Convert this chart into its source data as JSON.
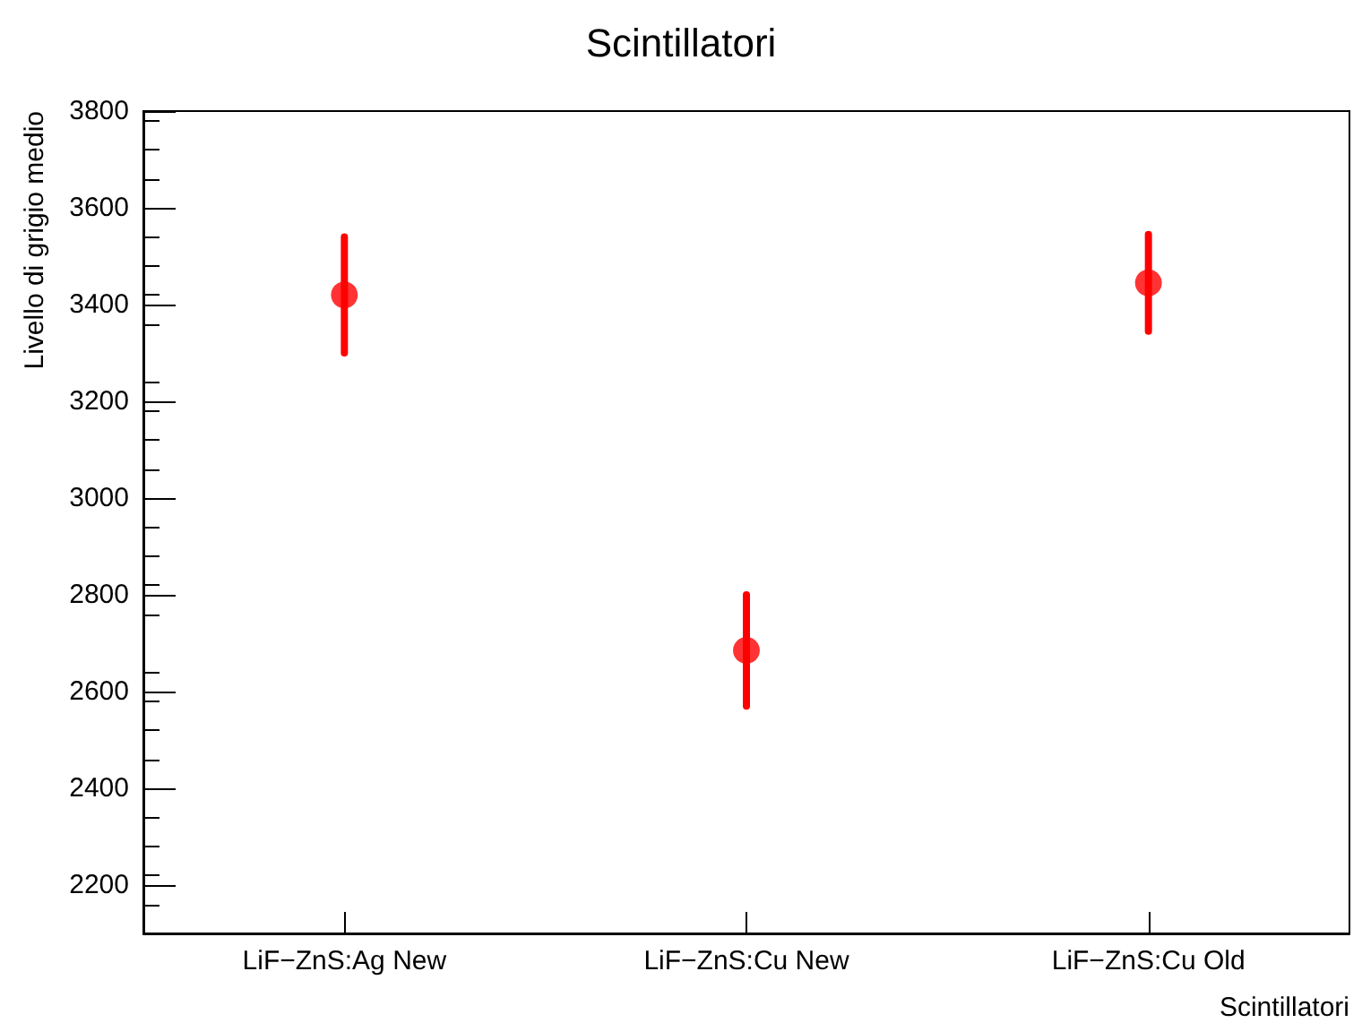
{
  "chart_data": {
    "type": "scatter",
    "title": "Scintillatori",
    "xlabel": "Scintillatori",
    "ylabel": "Livello di grigio medio",
    "categories": [
      "LiF−ZnS:Ag New",
      "LiF−ZnS:Cu New",
      "LiF−ZnS:Cu Old"
    ],
    "series": [
      {
        "color": "#ff0000",
        "values": [
          3420,
          2685,
          3445
        ],
        "errors": [
          120,
          115,
          100
        ]
      }
    ],
    "ylim": [
      2100,
      3800
    ],
    "yticks": [
      2200,
      2400,
      2600,
      2800,
      3000,
      3200,
      3400,
      3600,
      3800
    ],
    "marker": "circle",
    "grid": false
  }
}
